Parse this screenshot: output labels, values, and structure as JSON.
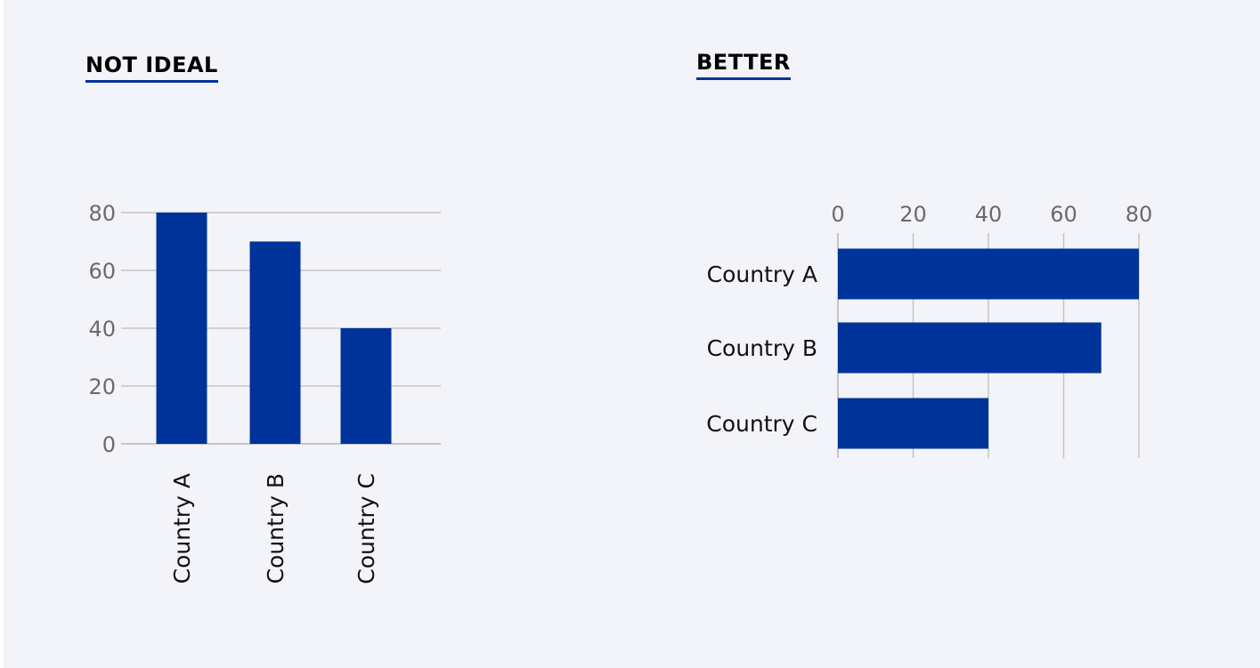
{
  "colors": {
    "background": "#f3f4f9",
    "bar": "#003399",
    "grid": "#c4c4c8",
    "title_underline": "#003399"
  },
  "chart_data": [
    {
      "type": "bar",
      "orientation": "vertical",
      "panel_title": "NOT IDEAL",
      "categories": [
        "Country A",
        "Country B",
        "Country C"
      ],
      "values": [
        80,
        70,
        40
      ],
      "yticks": [
        "0",
        "20",
        "40",
        "60",
        "80"
      ],
      "ylim": [
        0,
        80
      ],
      "grid": true,
      "category_label_rotation": "vertical"
    },
    {
      "type": "bar",
      "orientation": "horizontal",
      "panel_title": "BETTER",
      "categories": [
        "Country A",
        "Country B",
        "Country C"
      ],
      "values": [
        80,
        70,
        40
      ],
      "xticks": [
        "0",
        "20",
        "40",
        "60",
        "80"
      ],
      "xlim": [
        0,
        80
      ],
      "grid": true,
      "tick_labels_position": "top"
    }
  ]
}
